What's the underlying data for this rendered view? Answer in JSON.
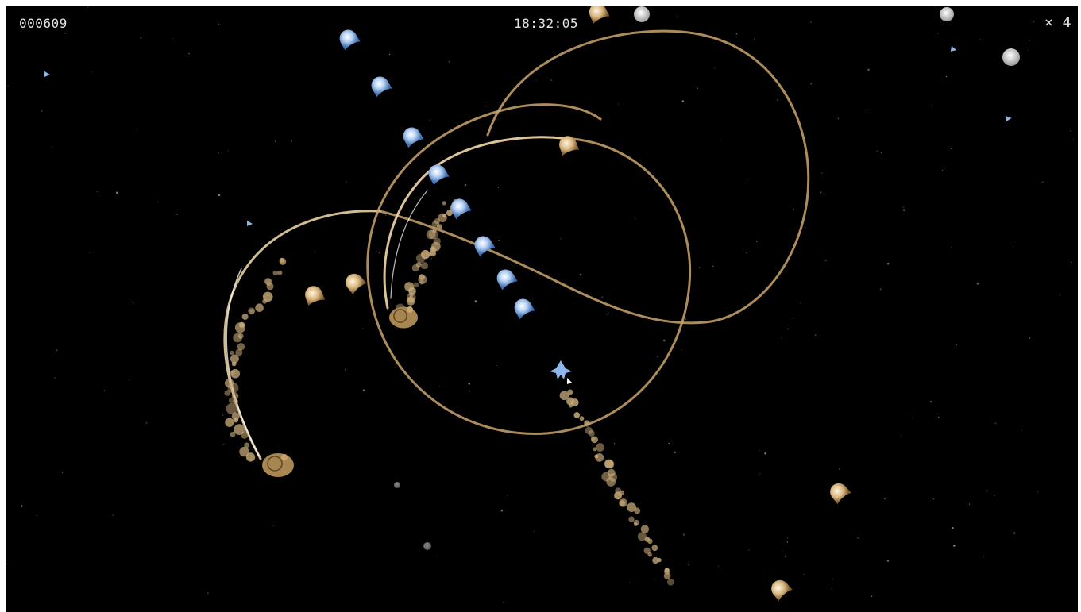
{
  "hud": {
    "score": "000609",
    "timer": "18:32:05",
    "lives": "× 4"
  },
  "palette": {
    "background": "#000000",
    "gold_path": "#c9a46a",
    "gold_path_bright": "#e8cfa0",
    "blue_enemy": "#8fb6ea",
    "blue_glow": "#4a78b8",
    "gold_enemy": "#e2c28c",
    "particle": "#c7a979",
    "grey_orb": "#cfcfcf",
    "hud_text": "#e6e6e6"
  },
  "icons": {
    "player": "player-ship-icon",
    "blue_pod": "blue-pod-enemy-icon",
    "gold_pod": "gold-pod-enemy-icon",
    "grey_orb": "grey-orb-icon",
    "mini_ship": "mini-ship-icon",
    "spawner": "spawner-blob-icon"
  }
}
